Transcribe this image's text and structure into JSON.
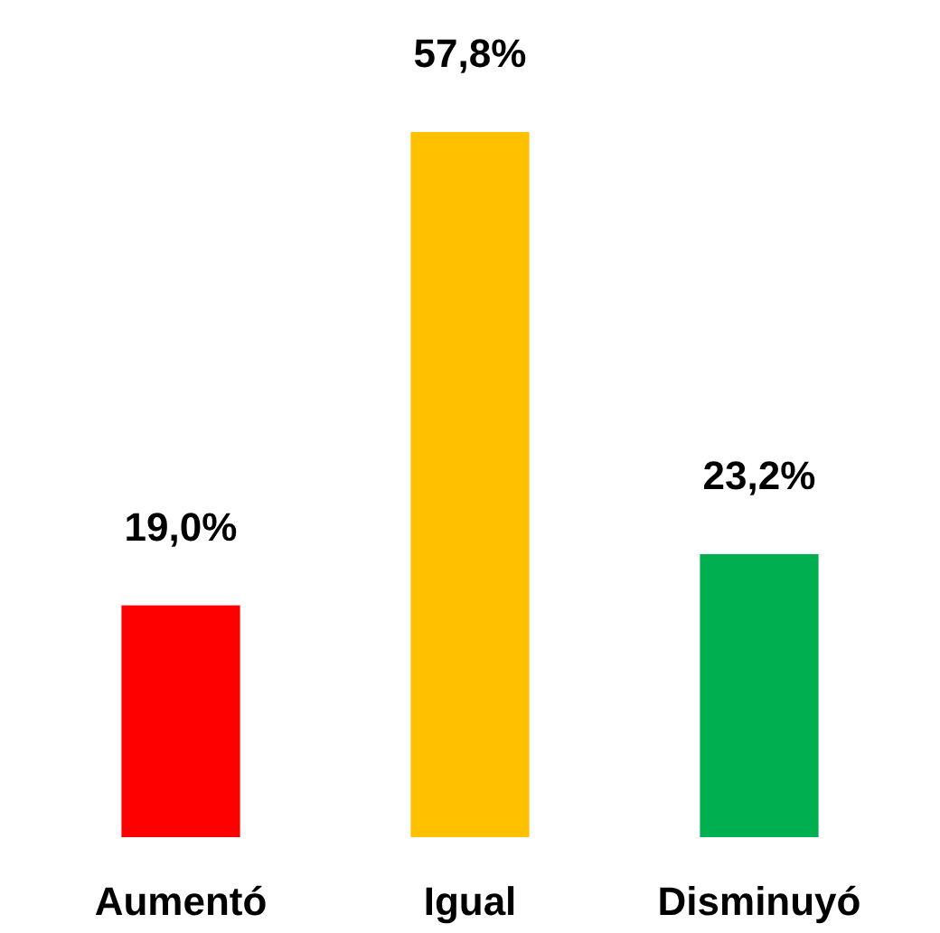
{
  "chart_data": {
    "type": "bar",
    "categories": [
      "Aumentó",
      "Igual",
      "Disminuyó"
    ],
    "values": [
      19.0,
      57.8,
      23.2
    ],
    "colors": [
      "#ff0000",
      "#ffc000",
      "#00b050"
    ],
    "value_labels": [
      "19,0%",
      "57,8%",
      "23,2%"
    ]
  }
}
